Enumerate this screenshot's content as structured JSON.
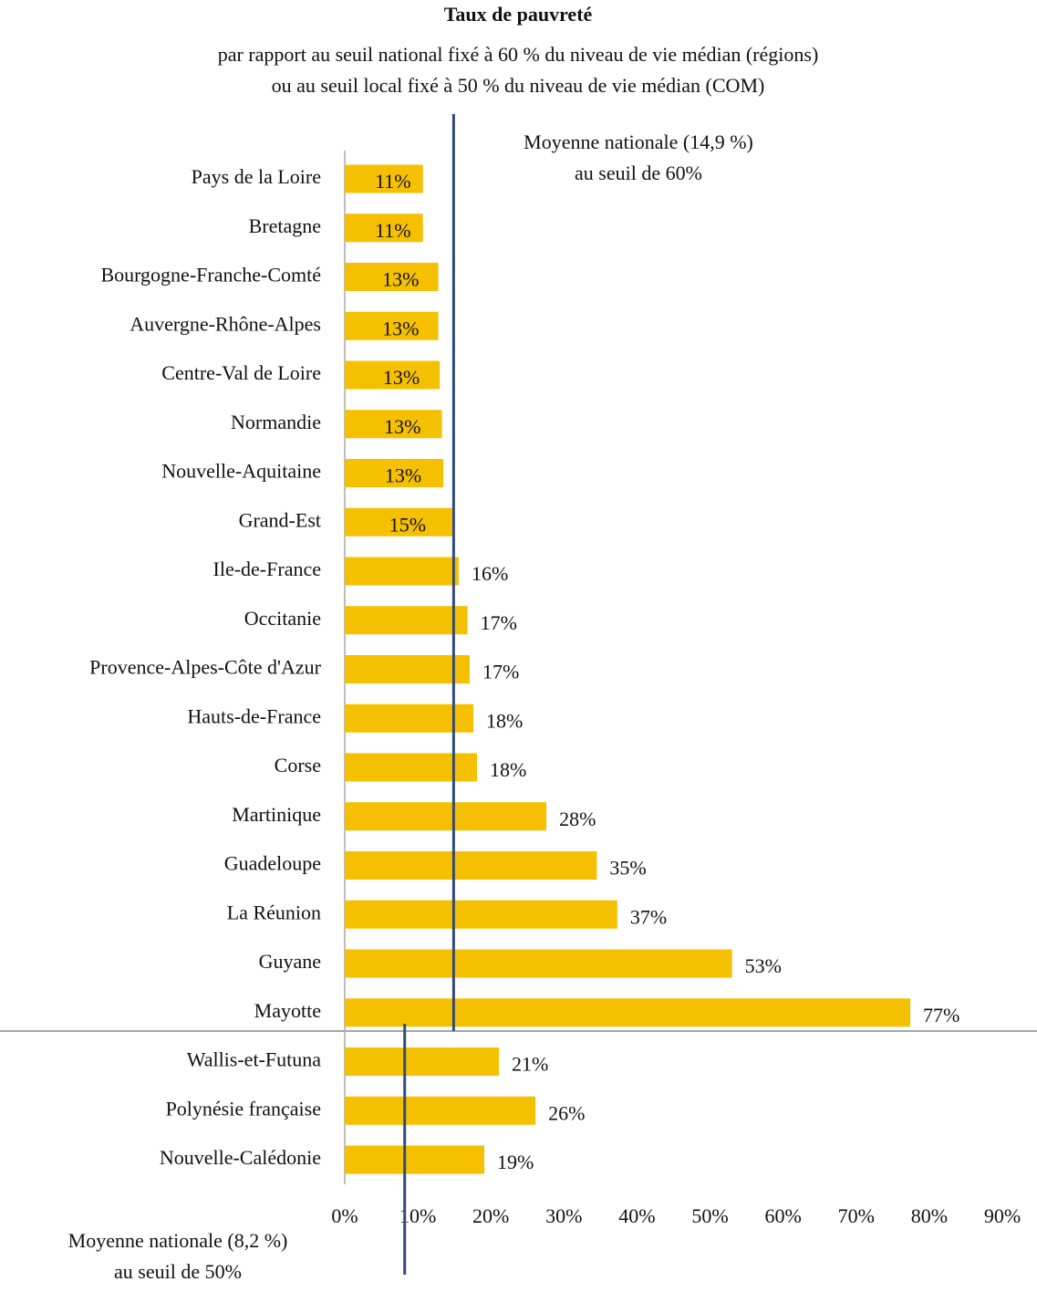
{
  "chart_data": {
    "type": "bar",
    "orientation": "horizontal",
    "title": "Taux de pauvreté",
    "subtitle": [
      "par rapport au seuil national fixé à 60 % du niveau de vie médian (régions)",
      "ou au seuil local fixé à 50 % du niveau de vie médian (COM)"
    ],
    "categories": [
      "Pays de la Loire",
      "Bretagne",
      "Bourgogne-Franche-Comté",
      "Auvergne-Rhône-Alpes",
      "Centre-Val de Loire",
      "Normandie",
      "Nouvelle-Aquitaine",
      "Grand-Est",
      "Ile-de-France",
      "Occitanie",
      "Provence-Alpes-Côte d'Azur",
      "Hauts-de-France",
      "Corse",
      "Martinique",
      "Guadeloupe",
      "La Réunion",
      "Guyane",
      "Mayotte",
      "Wallis-et-Futuna",
      "Polynésie française",
      "Nouvelle-Calédonie"
    ],
    "values": [
      10.7,
      10.7,
      12.8,
      12.8,
      13.0,
      13.3,
      13.5,
      14.7,
      15.6,
      16.8,
      17.1,
      17.6,
      18.1,
      27.6,
      34.5,
      37.3,
      53.0,
      77.4,
      21.1,
      26.1,
      19.1
    ],
    "value_labels": [
      "11%",
      "11%",
      "13%",
      "13%",
      "13%",
      "13%",
      "13%",
      "15%",
      "16%",
      "17%",
      "17%",
      "18%",
      "18%",
      "28%",
      "35%",
      "37%",
      "53%",
      "77%",
      "21%",
      "26%",
      "19%"
    ],
    "color": "#f5c000",
    "xlim": [
      0,
      90
    ],
    "xticks": [
      {
        "value": 0,
        "label": "0%"
      },
      {
        "value": 10,
        "label": "10%"
      },
      {
        "value": 20,
        "label": "20%"
      },
      {
        "value": 30,
        "label": "30%"
      },
      {
        "value": 40,
        "label": "40%"
      },
      {
        "value": 50,
        "label": "50%"
      },
      {
        "value": 60,
        "label": "60%"
      },
      {
        "value": 70,
        "label": "70%"
      },
      {
        "value": 80,
        "label": "80%"
      },
      {
        "value": 90,
        "label": "90%"
      }
    ],
    "reference_lines": [
      {
        "value": 14.9,
        "label": [
          "Moyenne nationale (14,9 %)",
          "au seuil de 60%"
        ],
        "color": "#34497a"
      },
      {
        "value": 8.2,
        "label": [
          "Moyenne nationale (8,2 %)",
          "au seuil de 50%"
        ],
        "color": "#34497a"
      }
    ]
  }
}
